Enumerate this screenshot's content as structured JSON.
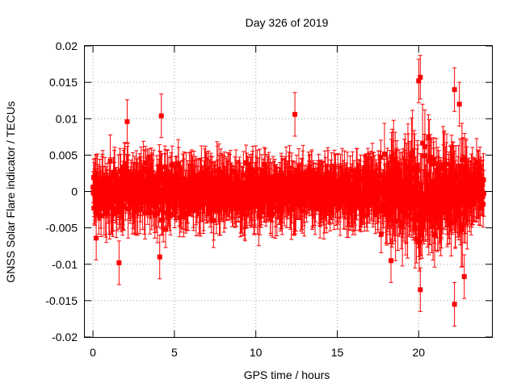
{
  "chart_data": {
    "type": "scatter",
    "title": "Day 326 of 2019",
    "xlabel": "GPS time / hours",
    "ylabel": "GNSS Solar Flare indicator / TECUs",
    "xlim": [
      -0.5,
      24.5
    ],
    "ylim": [
      -0.02,
      0.02
    ],
    "x_ticks": [
      0,
      5,
      10,
      15,
      20
    ],
    "x_tick_labels": [
      "0",
      "5",
      "10",
      "15",
      "20"
    ],
    "y_ticks": [
      -0.02,
      -0.015,
      -0.01,
      -0.005,
      0,
      0.005,
      0.01,
      0.015,
      0.02
    ],
    "y_tick_labels": [
      "-0.02",
      "-0.015",
      "-0.01",
      "-0.005",
      "0",
      "0.005",
      "0.01",
      "0.015",
      "0.02"
    ],
    "grid": true,
    "series_color": "#ff0000",
    "series": [
      {
        "name": "solar-flare-indicator",
        "marker": "square",
        "error_bars": true,
        "x_range_hours": [
          0,
          24
        ],
        "sample_interval_hours": 0.02,
        "typical_abs_value": 0.004,
        "typical_error": 0.004,
        "extreme_points": [
          {
            "x": 20.0,
            "y": 0.0152
          },
          {
            "x": 20.1,
            "y": 0.0157
          },
          {
            "x": 22.2,
            "y": 0.014
          },
          {
            "x": 22.5,
            "y": 0.012
          },
          {
            "x": 4.2,
            "y": 0.0104
          },
          {
            "x": 12.4,
            "y": 0.0106
          },
          {
            "x": 2.1,
            "y": 0.0096
          },
          {
            "x": 22.2,
            "y": -0.0155
          },
          {
            "x": 20.1,
            "y": -0.0135
          },
          {
            "x": 22.8,
            "y": -0.0117
          },
          {
            "x": 1.6,
            "y": -0.0098
          },
          {
            "x": 4.1,
            "y": -0.009
          },
          {
            "x": 18.3,
            "y": -0.0095
          },
          {
            "x": 0.2,
            "y": -0.0064
          }
        ]
      }
    ]
  }
}
